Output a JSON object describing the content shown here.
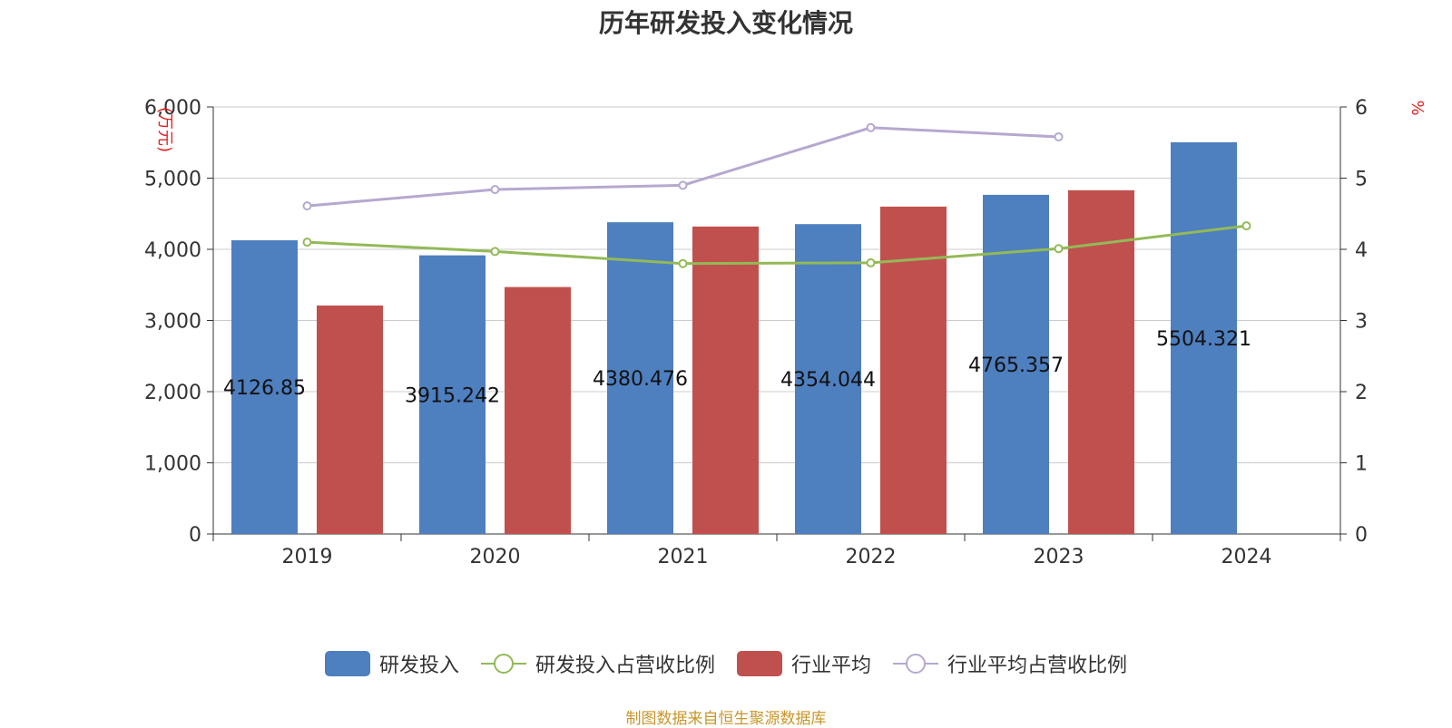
{
  "title": "历年研发投入变化情况",
  "source": "制图数据来自恒生聚源数据库",
  "chart_data": {
    "type": "bar",
    "categories": [
      "2019",
      "2020",
      "2021",
      "2022",
      "2023",
      "2024"
    ],
    "y_left": {
      "label": "万元",
      "ylim": [
        0,
        6000
      ],
      "ticks": [
        "0",
        "1,000",
        "2,000",
        "3,000",
        "4,000",
        "5,000",
        "6,000"
      ]
    },
    "y_right": {
      "label": "%",
      "ylim": [
        0,
        6
      ],
      "ticks": [
        "0",
        "1",
        "2",
        "3",
        "4",
        "5",
        "6"
      ]
    },
    "grid": true,
    "legend_position": "bottom",
    "series": [
      {
        "name": "研发投入",
        "type": "bar",
        "axis": "left",
        "color": "#4e7fbf",
        "values": [
          4126.85,
          3915.242,
          4380.476,
          4354.044,
          4765.357,
          5504.321
        ],
        "labels": [
          "4126.85",
          "3915.242",
          "4380.476",
          "4354.044",
          "4765.357",
          "5504.321"
        ]
      },
      {
        "name": "研发投入占营收比例",
        "type": "line",
        "axis": "right",
        "color": "#93b957",
        "values": [
          4.1,
          3.97,
          3.8,
          3.81,
          4.01,
          4.33
        ]
      },
      {
        "name": "行业平均",
        "type": "bar",
        "axis": "left",
        "color": "#c0504d",
        "values": [
          3210,
          3470,
          4320,
          4600,
          4830,
          null
        ]
      },
      {
        "name": "行业平均占营收比例",
        "type": "line",
        "axis": "right",
        "color": "#b6a8cf",
        "values": [
          4.61,
          4.84,
          4.9,
          5.71,
          5.58,
          null
        ]
      }
    ]
  }
}
